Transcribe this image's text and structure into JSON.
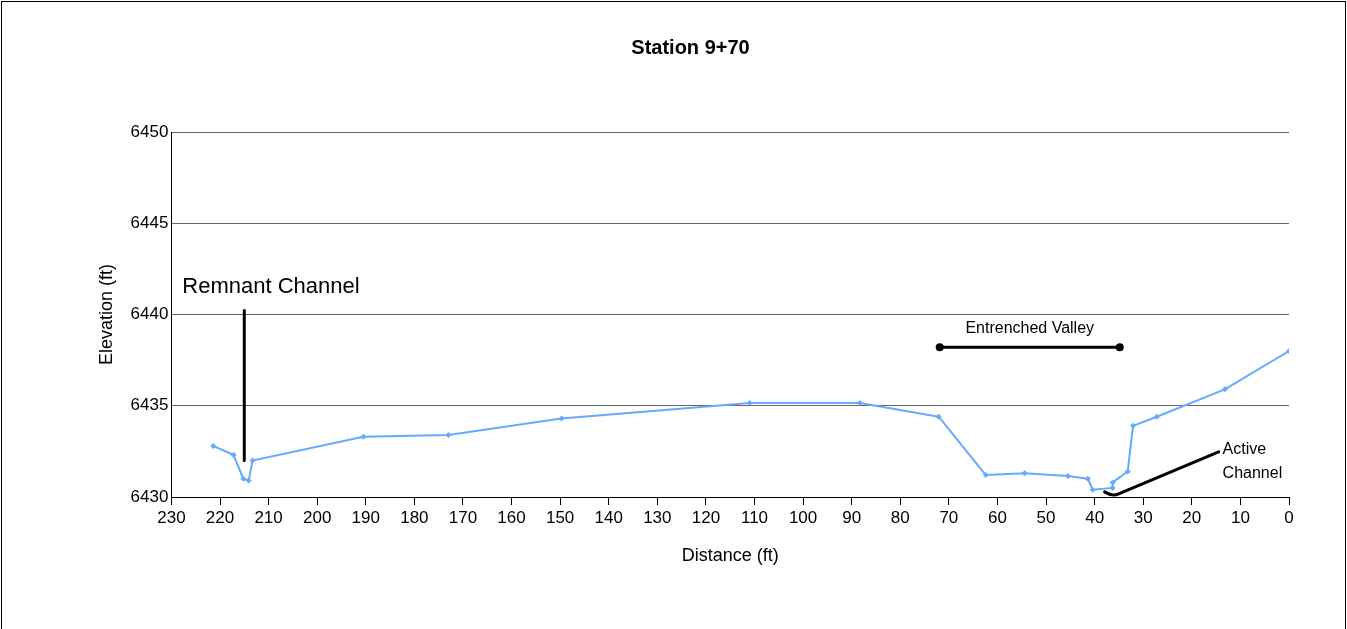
{
  "chart_data": {
    "type": "line",
    "title": "Station 9+70",
    "xlabel": "Distance (ft)",
    "ylabel": "Elevation (ft)",
    "xlim": [
      230,
      0
    ],
    "xticks": [
      230,
      220,
      210,
      200,
      190,
      180,
      170,
      160,
      150,
      140,
      130,
      120,
      110,
      100,
      90,
      80,
      70,
      60,
      50,
      40,
      30,
      20,
      10,
      0
    ],
    "ylim": [
      6430,
      6450
    ],
    "yticks": [
      6430,
      6435,
      6440,
      6445,
      6450
    ],
    "grid": "y",
    "legend": false,
    "marker": "diamond",
    "line_style": "solid",
    "series": [
      {
        "color": "#66aaff",
        "x": [
          221.4,
          217.2,
          215.2,
          214.1,
          213.3,
          190.5,
          173,
          149.7,
          111,
          88.3,
          72.1,
          62.4,
          54.4,
          45.5,
          41.4,
          40.4,
          36.3,
          36.3,
          33.2,
          32.1,
          27.2,
          13.2,
          0
        ],
        "values": [
          6432.8,
          6432.3,
          6431,
          6430.9,
          6432,
          6433.3,
          6433.4,
          6434.3,
          6435.15,
          6435.15,
          6434.4,
          6431.2,
          6431.3,
          6431.15,
          6431,
          6430.4,
          6430.5,
          6430.8,
          6431.4,
          6433.9,
          6434.4,
          6435.9,
          6438
        ]
      }
    ],
    "annotations": [
      "Remnant Channel",
      "Entrenched Valley",
      {
        "text": "Active Channel",
        "x": 36.3,
        "y": 6430.5
      }
    ]
  }
}
